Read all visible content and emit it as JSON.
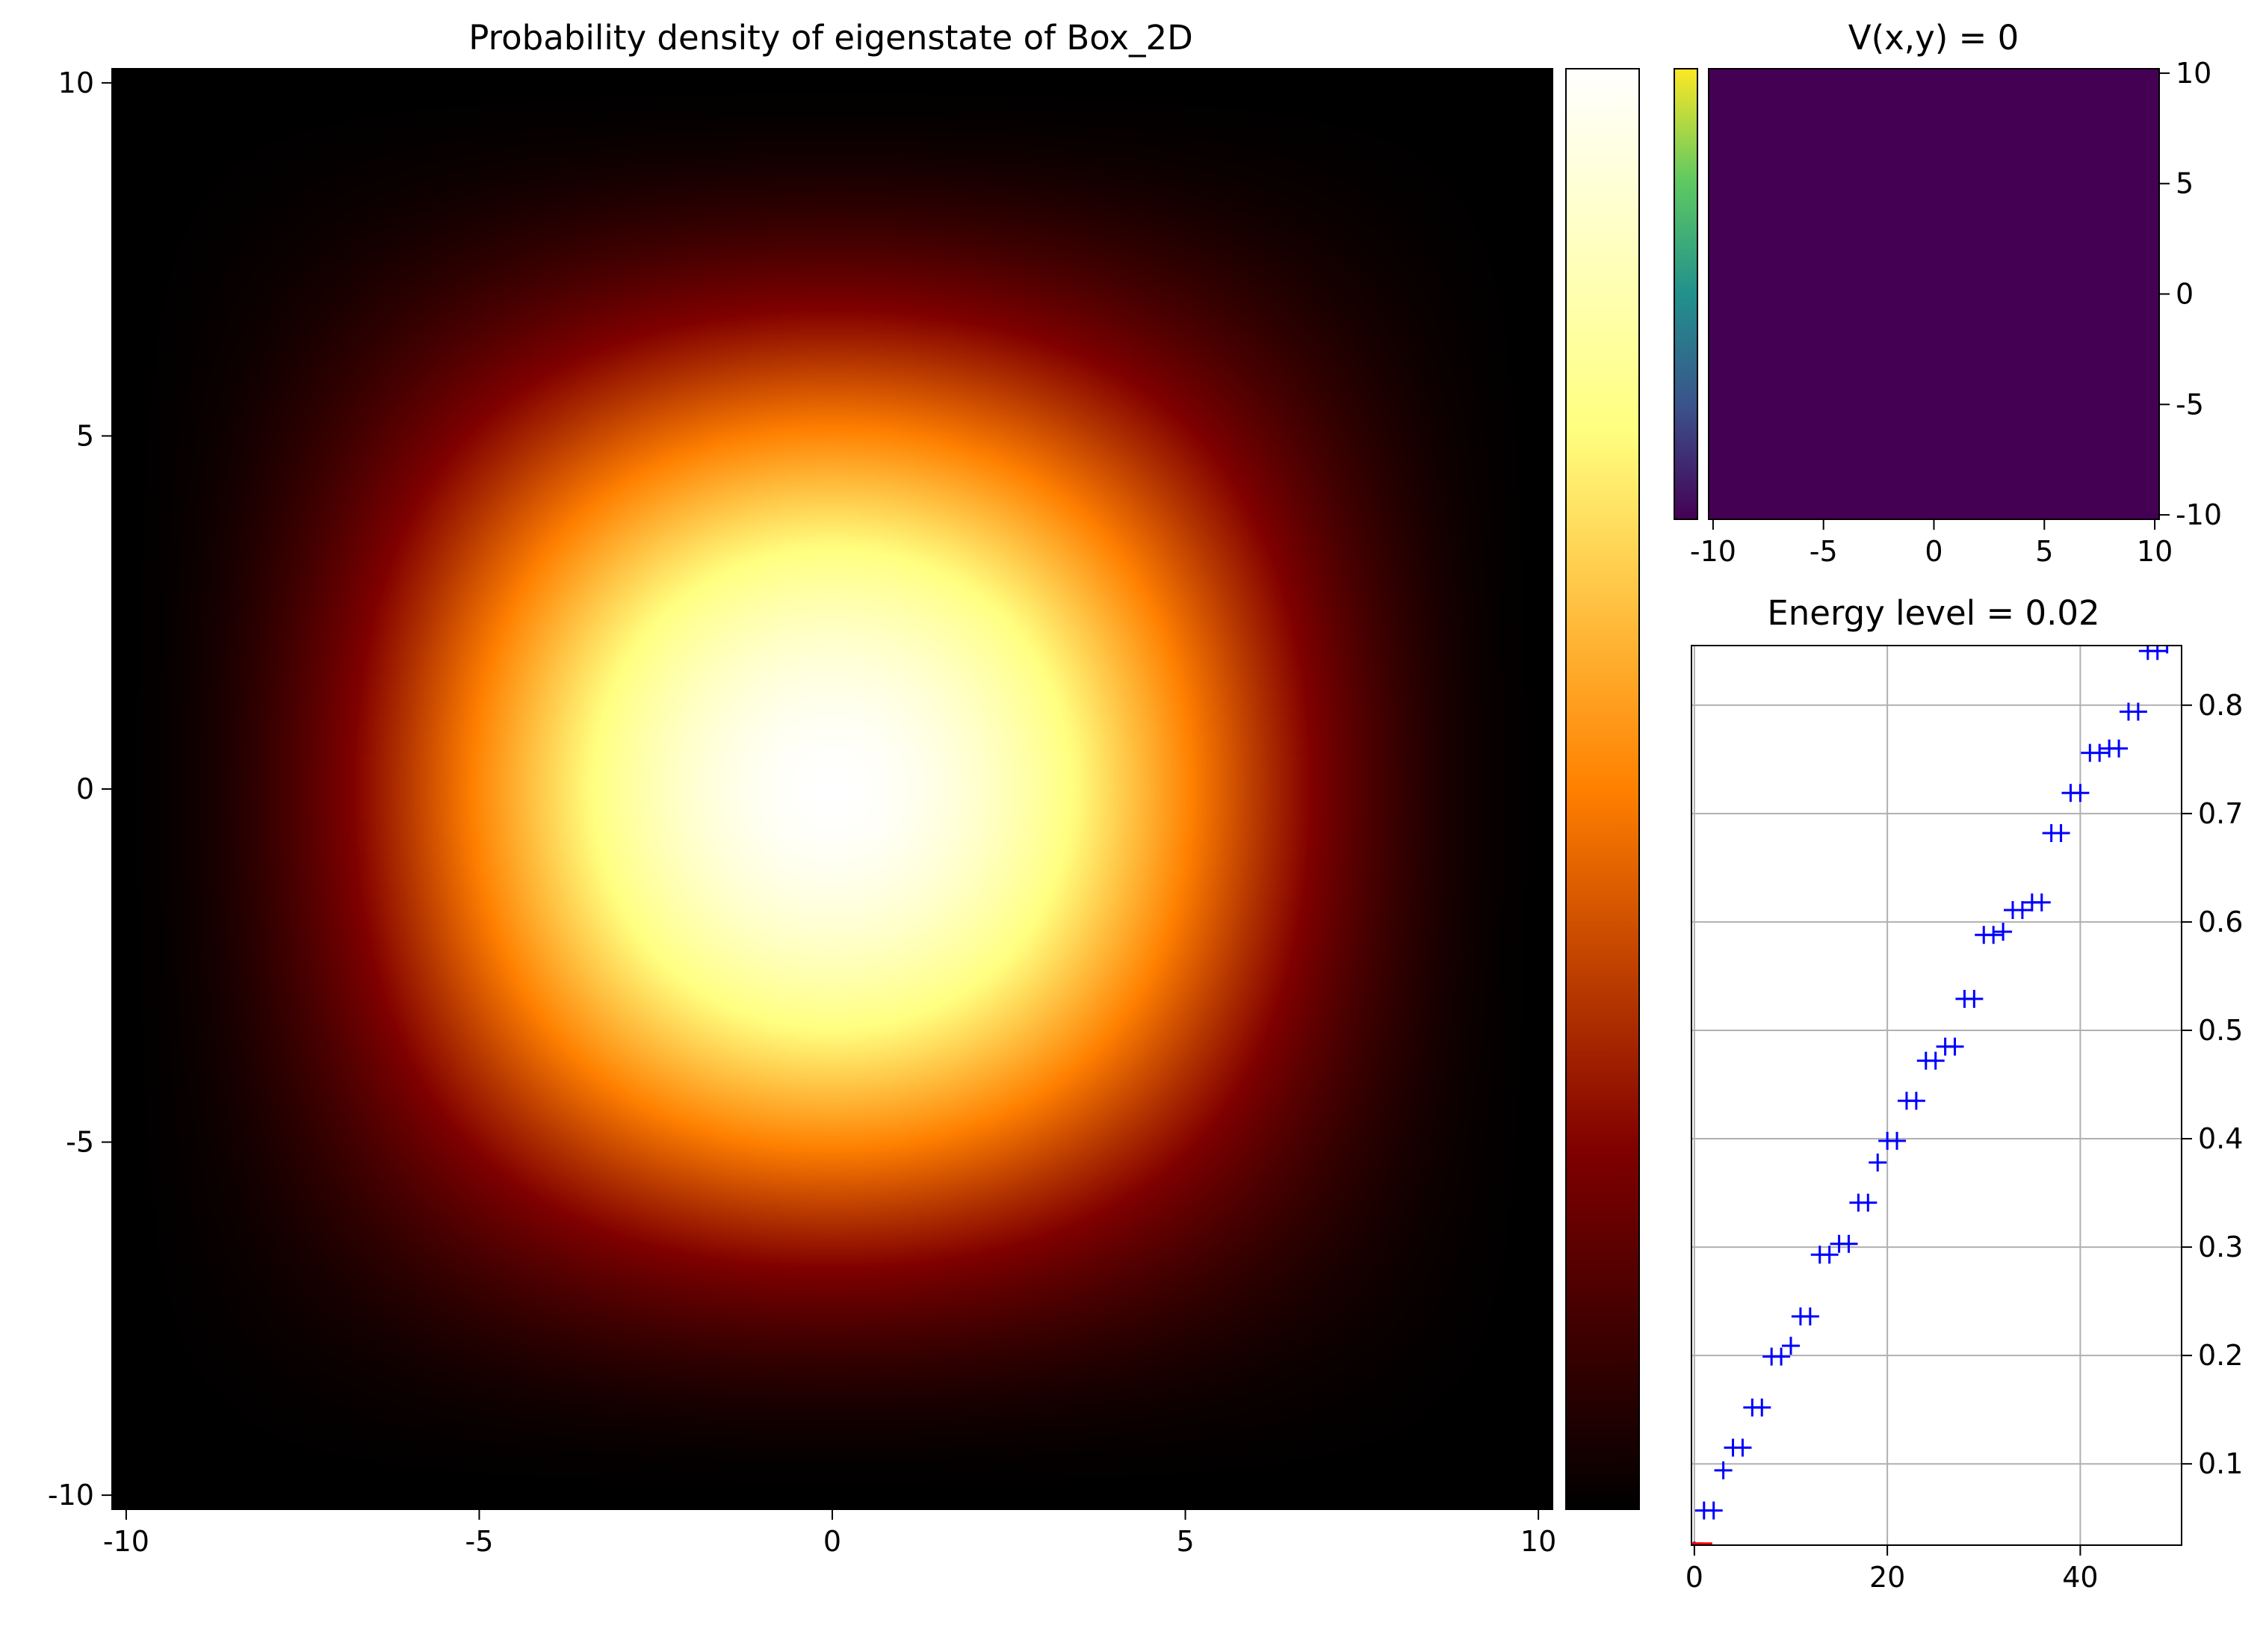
{
  "chart_data": [
    {
      "type": "heatmap",
      "title": "Probability density of eigenstate of Box_2D",
      "xlim": [
        -10.2,
        10.2
      ],
      "ylim": [
        -10.2,
        10.2
      ],
      "x_ticks": [
        -10,
        -5,
        0,
        5,
        10
      ],
      "x_tick_labels": [
        "-10",
        "-5",
        "0",
        "5",
        "10"
      ],
      "y_ticks": [
        10,
        5,
        0,
        -5,
        -10
      ],
      "y_tick_labels": [
        "10",
        "5",
        "0",
        "-5",
        "-10"
      ],
      "function": "cos(pi*x/20.4)^2 * cos(pi*y/20.4)^2",
      "colormap": "afmhot",
      "colormap_stops": [
        "#000000",
        "#800000",
        "#ff8000",
        "#ffff80",
        "#ffffff"
      ],
      "colorbar": true,
      "grid": false
    },
    {
      "type": "heatmap",
      "title": "V(x,y) = 0",
      "xlim": [
        -10.2,
        10.2
      ],
      "ylim": [
        -10.2,
        10.2
      ],
      "x_ticks": [
        -10,
        -5,
        0,
        5,
        10
      ],
      "x_tick_labels": [
        "-10",
        "-5",
        "0",
        "5",
        "10"
      ],
      "y_ticks": [
        10,
        5,
        0,
        -5,
        -10
      ],
      "y_tick_labels": [
        "10",
        "5",
        "0",
        "-5",
        "-10"
      ],
      "value": 0,
      "fill_color": "#440154",
      "colormap": "viridis",
      "colormap_stops": [
        "#440154",
        "#3b528b",
        "#21918c",
        "#5ec962",
        "#fde725"
      ],
      "colorbar": true,
      "grid": false
    },
    {
      "type": "scatter",
      "title": "Energy level = 0.02",
      "xlim": [
        -0.3,
        50.5
      ],
      "ylim": [
        0.025,
        0.855
      ],
      "x_ticks": [
        0,
        20,
        40
      ],
      "x_tick_labels": [
        "0",
        "20",
        "40"
      ],
      "y_ticks": [
        0.1,
        0.2,
        0.3,
        0.4,
        0.5,
        0.6,
        0.7,
        0.8
      ],
      "y_tick_labels": [
        "0.1",
        "0.2",
        "0.3",
        "0.4",
        "0.5",
        "0.6",
        "0.7",
        "0.8"
      ],
      "grid": true,
      "series": [
        {
          "marker": "+",
          "color": "#0000ff",
          "x": [
            0,
            1,
            2,
            3,
            4,
            5,
            6,
            7,
            8,
            9,
            10,
            11,
            12,
            13,
            14,
            15,
            16,
            17,
            18,
            19,
            20,
            21,
            22,
            23,
            24,
            25,
            26,
            27,
            28,
            29,
            30,
            31,
            32,
            33,
            34,
            35,
            36,
            37,
            38,
            39,
            40,
            41,
            42,
            43,
            44,
            45,
            46,
            47,
            48,
            49
          ],
          "y": [
            0.02,
            0.057,
            0.057,
            0.094,
            0.115,
            0.115,
            0.152,
            0.152,
            0.199,
            0.199,
            0.209,
            0.236,
            0.236,
            0.293,
            0.293,
            0.303,
            0.303,
            0.341,
            0.341,
            0.378,
            0.398,
            0.398,
            0.435,
            0.435,
            0.472,
            0.472,
            0.485,
            0.485,
            0.529,
            0.529,
            0.588,
            0.588,
            0.591,
            0.611,
            0.611,
            0.618,
            0.618,
            0.682,
            0.682,
            0.719,
            0.719,
            0.756,
            0.756,
            0.76,
            0.76,
            0.794,
            0.794,
            0.85,
            0.85,
            0.856
          ]
        },
        {
          "marker": "square",
          "color": "#ff0000",
          "x": [
            0,
            1
          ],
          "y": [
            0.02,
            0.02
          ]
        }
      ]
    }
  ]
}
